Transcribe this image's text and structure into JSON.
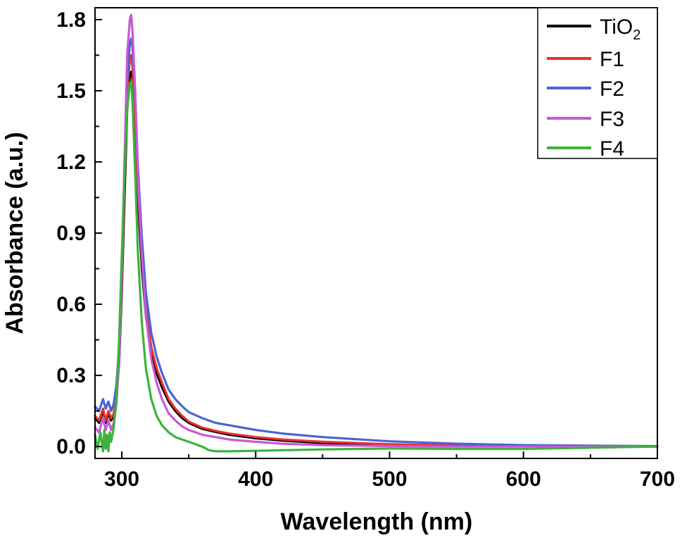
{
  "chart_data": {
    "type": "line",
    "xlabel": "Wavelength (nm)",
    "ylabel": "Absorbance (a.u.)",
    "xlim": [
      280,
      700
    ],
    "ylim": [
      -0.05,
      1.85
    ],
    "x_ticks": [
      300,
      400,
      500,
      600,
      700
    ],
    "y_ticks": [
      0.0,
      0.3,
      0.6,
      0.9,
      1.2,
      1.5,
      1.8
    ],
    "x_tick_labels": [
      "300",
      "400",
      "500",
      "600",
      "700"
    ],
    "y_tick_labels": [
      "0.0",
      "0.3",
      "0.6",
      "0.9",
      "1.2",
      "1.5",
      "1.8"
    ],
    "legend_position": "top-right",
    "grid": false,
    "series": [
      {
        "name": "TiO2",
        "label_main": "TiO",
        "label_sub": "2",
        "color": "#000000",
        "x": [
          280,
          283,
          286,
          288,
          290,
          292,
          294,
          296,
          298,
          300,
          302,
          304,
          306,
          307,
          308,
          310,
          312,
          315,
          318,
          322,
          326,
          330,
          335,
          340,
          345,
          350,
          360,
          370,
          380,
          400,
          420,
          450,
          500,
          550,
          600,
          650,
          700
        ],
        "y": [
          0.12,
          0.1,
          0.15,
          0.1,
          0.14,
          0.11,
          0.13,
          0.2,
          0.35,
          0.65,
          1.05,
          1.42,
          1.56,
          1.58,
          1.55,
          1.35,
          1.05,
          0.75,
          0.55,
          0.4,
          0.31,
          0.25,
          0.19,
          0.15,
          0.12,
          0.1,
          0.075,
          0.062,
          0.05,
          0.035,
          0.025,
          0.015,
          0.008,
          0.004,
          0.002,
          0.0,
          0.0
        ]
      },
      {
        "name": "F1",
        "color": "#e8312f",
        "x": [
          280,
          283,
          286,
          288,
          290,
          292,
          294,
          296,
          298,
          300,
          302,
          304,
          306,
          307,
          308,
          310,
          312,
          315,
          318,
          322,
          326,
          330,
          335,
          340,
          345,
          350,
          360,
          370,
          380,
          400,
          420,
          450,
          500,
          550,
          600,
          650,
          700
        ],
        "y": [
          0.13,
          0.11,
          0.16,
          0.11,
          0.15,
          0.12,
          0.14,
          0.22,
          0.38,
          0.7,
          1.12,
          1.5,
          1.63,
          1.65,
          1.6,
          1.4,
          1.1,
          0.8,
          0.58,
          0.42,
          0.33,
          0.27,
          0.2,
          0.16,
          0.13,
          0.105,
          0.08,
          0.066,
          0.055,
          0.04,
          0.03,
          0.02,
          0.01,
          0.005,
          0.002,
          0.0,
          0.0
        ]
      },
      {
        "name": "F2",
        "color": "#4a63d8",
        "x": [
          280,
          283,
          286,
          288,
          290,
          292,
          294,
          296,
          298,
          300,
          302,
          304,
          306,
          307,
          308,
          310,
          312,
          315,
          318,
          322,
          326,
          330,
          335,
          340,
          345,
          350,
          360,
          370,
          380,
          400,
          420,
          450,
          500,
          550,
          600,
          650,
          700
        ],
        "y": [
          0.17,
          0.15,
          0.2,
          0.16,
          0.19,
          0.15,
          0.18,
          0.26,
          0.42,
          0.75,
          1.18,
          1.55,
          1.7,
          1.72,
          1.68,
          1.48,
          1.18,
          0.88,
          0.65,
          0.48,
          0.38,
          0.31,
          0.24,
          0.2,
          0.17,
          0.145,
          0.12,
          0.1,
          0.09,
          0.07,
          0.055,
          0.04,
          0.022,
          0.012,
          0.006,
          0.004,
          0.002
        ]
      },
      {
        "name": "F3",
        "color": "#c45ad6",
        "x": [
          280,
          283,
          286,
          288,
          290,
          292,
          294,
          296,
          298,
          300,
          302,
          304,
          306,
          307,
          308,
          310,
          312,
          315,
          318,
          322,
          326,
          330,
          335,
          340,
          345,
          350,
          360,
          370,
          380,
          400,
          420,
          450,
          500,
          550,
          600,
          650,
          700
        ],
        "y": [
          0.08,
          0.06,
          0.12,
          0.07,
          0.11,
          0.07,
          0.1,
          0.18,
          0.36,
          0.72,
          1.2,
          1.65,
          1.8,
          1.82,
          1.75,
          1.5,
          1.15,
          0.8,
          0.55,
          0.37,
          0.27,
          0.2,
          0.14,
          0.11,
          0.085,
          0.07,
          0.05,
          0.04,
          0.03,
          0.02,
          0.012,
          0.006,
          0.002,
          0.0,
          0.0,
          0.0,
          0.0
        ]
      },
      {
        "name": "F4",
        "color": "#3bb33b",
        "x": [
          280,
          282,
          284,
          286,
          287,
          288,
          289,
          290,
          291,
          292,
          294,
          296,
          298,
          300,
          302,
          304,
          306,
          307,
          308,
          310,
          312,
          315,
          318,
          322,
          326,
          330,
          335,
          340,
          345,
          350,
          355,
          360,
          365,
          370,
          380,
          400,
          450,
          500,
          550,
          600,
          650,
          700
        ],
        "y": [
          0.05,
          -0.01,
          0.06,
          -0.02,
          0.07,
          -0.01,
          0.05,
          -0.02,
          0.06,
          0.02,
          0.08,
          0.2,
          0.45,
          0.8,
          1.15,
          1.42,
          1.53,
          1.54,
          1.45,
          1.15,
          0.82,
          0.52,
          0.33,
          0.2,
          0.13,
          0.09,
          0.06,
          0.04,
          0.03,
          0.02,
          0.01,
          0.0,
          -0.015,
          -0.02,
          -0.02,
          -0.018,
          -0.012,
          -0.008,
          -0.01,
          -0.01,
          -0.005,
          0.0
        ]
      }
    ]
  }
}
